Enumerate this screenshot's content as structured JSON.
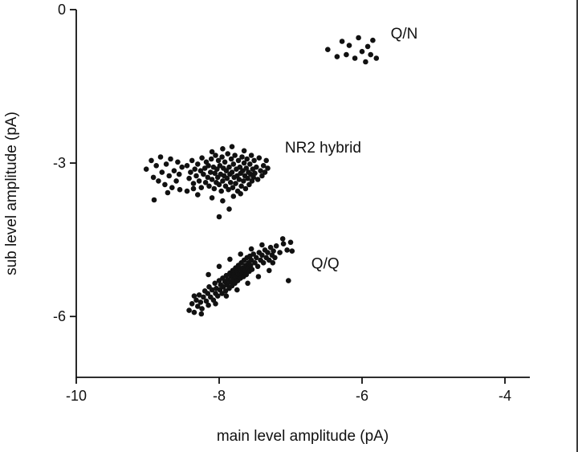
{
  "figure": {
    "background": "#ffffff",
    "point_color": "#111111",
    "axis_color": "#111111"
  },
  "chart_data": {
    "type": "scatter",
    "title": "",
    "xlabel": "main level amplitude (pA)",
    "ylabel": "sub level amplitude (pA)",
    "xlim": [
      -10,
      -3.65
    ],
    "ylim": [
      -7.2,
      0
    ],
    "xticks": [
      -10,
      -8,
      -6,
      -4
    ],
    "yticks": [
      0,
      -3,
      -6
    ],
    "grid": false,
    "legend": false,
    "annotations": [
      {
        "text": "Q/N",
        "x": -5.6,
        "y": -0.47
      },
      {
        "text": "NR2 hybrid",
        "x": -7.08,
        "y": -2.7
      },
      {
        "text": "Q/Q",
        "x": -6.71,
        "y": -4.97
      }
    ],
    "series": [
      {
        "name": "Q/N",
        "points": [
          [
            -6.48,
            -0.78
          ],
          [
            -6.35,
            -0.92
          ],
          [
            -6.28,
            -0.62
          ],
          [
            -6.22,
            -0.88
          ],
          [
            -6.18,
            -0.7
          ],
          [
            -6.1,
            -0.95
          ],
          [
            -6.05,
            -0.55
          ],
          [
            -6.0,
            -0.82
          ],
          [
            -5.95,
            -1.02
          ],
          [
            -5.92,
            -0.72
          ],
          [
            -5.88,
            -0.88
          ],
          [
            -5.85,
            -0.6
          ],
          [
            -5.8,
            -0.95
          ]
        ]
      },
      {
        "name": "NR2 hybrid",
        "points": [
          [
            -9.02,
            -3.12
          ],
          [
            -8.95,
            -2.95
          ],
          [
            -8.92,
            -3.28
          ],
          [
            -8.88,
            -3.05
          ],
          [
            -8.85,
            -3.35
          ],
          [
            -8.82,
            -2.88
          ],
          [
            -8.8,
            -3.18
          ],
          [
            -8.76,
            -3.42
          ],
          [
            -8.74,
            -3.02
          ],
          [
            -8.7,
            -3.25
          ],
          [
            -8.68,
            -2.92
          ],
          [
            -8.66,
            -3.48
          ],
          [
            -8.63,
            -3.15
          ],
          [
            -8.6,
            -3.35
          ],
          [
            -8.58,
            -2.98
          ],
          [
            -8.56,
            -3.22
          ],
          [
            -8.91,
            -3.72
          ],
          [
            -8.72,
            -3.58
          ],
          [
            -8.55,
            -3.52
          ],
          [
            -8.52,
            -3.08
          ],
          [
            -8.45,
            -3.05
          ],
          [
            -8.42,
            -3.3
          ],
          [
            -8.4,
            -3.18
          ],
          [
            -8.38,
            -2.95
          ],
          [
            -8.36,
            -3.4
          ],
          [
            -8.34,
            -3.12
          ],
          [
            -8.32,
            -3.25
          ],
          [
            -8.3,
            -3.02
          ],
          [
            -8.28,
            -3.35
          ],
          [
            -8.26,
            -3.15
          ],
          [
            -8.25,
            -3.48
          ],
          [
            -8.24,
            -2.9
          ],
          [
            -8.22,
            -3.22
          ],
          [
            -8.2,
            -3.1
          ],
          [
            -8.19,
            -3.38
          ],
          [
            -8.18,
            -2.98
          ],
          [
            -8.16,
            -3.28
          ],
          [
            -8.15,
            -3.05
          ],
          [
            -8.14,
            -3.45
          ],
          [
            -8.12,
            -3.18
          ],
          [
            -8.11,
            -2.92
          ],
          [
            -8.1,
            -3.32
          ],
          [
            -8.08,
            -3.08
          ],
          [
            -8.07,
            -3.5
          ],
          [
            -8.06,
            -3.2
          ],
          [
            -8.05,
            -2.85
          ],
          [
            -8.04,
            -3.38
          ],
          [
            -8.03,
            -3.12
          ],
          [
            -8.02,
            -3.28
          ],
          [
            -8.01,
            -2.95
          ],
          [
            -8.0,
            -3.42
          ],
          [
            -7.99,
            -3.05
          ],
          [
            -7.98,
            -3.22
          ],
          [
            -7.97,
            -3.55
          ],
          [
            -7.96,
            -2.88
          ],
          [
            -7.95,
            -3.35
          ],
          [
            -7.94,
            -3.1
          ],
          [
            -7.93,
            -3.25
          ],
          [
            -7.92,
            -2.98
          ],
          [
            -7.91,
            -3.45
          ],
          [
            -7.9,
            -3.15
          ],
          [
            -7.89,
            -3.3
          ],
          [
            -7.88,
            -2.82
          ],
          [
            -7.87,
            -3.52
          ],
          [
            -7.86,
            -3.08
          ],
          [
            -7.85,
            -3.22
          ],
          [
            -7.84,
            -3.38
          ],
          [
            -7.83,
            -2.92
          ],
          [
            -7.82,
            -3.18
          ],
          [
            -7.81,
            -3.48
          ],
          [
            -7.8,
            -3.02
          ],
          [
            -7.79,
            -3.28
          ],
          [
            -7.78,
            -2.85
          ],
          [
            -7.77,
            -3.4
          ],
          [
            -7.76,
            -3.12
          ],
          [
            -7.75,
            -3.25
          ],
          [
            -7.74,
            -3.55
          ],
          [
            -7.73,
            -2.95
          ],
          [
            -7.72,
            -3.32
          ],
          [
            -7.71,
            -3.08
          ],
          [
            -7.7,
            -3.2
          ],
          [
            -7.69,
            -3.45
          ],
          [
            -7.68,
            -2.88
          ],
          [
            -7.67,
            -3.15
          ],
          [
            -7.66,
            -3.35
          ],
          [
            -7.65,
            -3.0
          ],
          [
            -7.64,
            -3.25
          ],
          [
            -7.63,
            -3.5
          ],
          [
            -7.62,
            -3.1
          ],
          [
            -7.61,
            -2.92
          ],
          [
            -7.6,
            -3.3
          ],
          [
            -7.59,
            -3.18
          ],
          [
            -7.58,
            -3.42
          ],
          [
            -7.57,
            -3.02
          ],
          [
            -7.56,
            -3.22
          ],
          [
            -7.55,
            -2.85
          ],
          [
            -7.54,
            -3.35
          ],
          [
            -7.53,
            -3.12
          ],
          [
            -7.52,
            -3.28
          ],
          [
            -7.51,
            -2.95
          ],
          [
            -7.5,
            -3.2
          ],
          [
            -7.48,
            -3.08
          ],
          [
            -7.46,
            -3.32
          ],
          [
            -7.44,
            -2.9
          ],
          [
            -7.42,
            -3.15
          ],
          [
            -7.4,
            -3.25
          ],
          [
            -7.38,
            -3.05
          ],
          [
            -7.36,
            -3.18
          ],
          [
            -7.34,
            -2.95
          ],
          [
            -7.32,
            -3.1
          ],
          [
            -8.1,
            -2.78
          ],
          [
            -7.95,
            -2.72
          ],
          [
            -7.82,
            -2.68
          ],
          [
            -7.65,
            -2.76
          ],
          [
            -8.3,
            -3.62
          ],
          [
            -8.1,
            -3.68
          ],
          [
            -7.95,
            -3.74
          ],
          [
            -7.8,
            -3.65
          ],
          [
            -7.7,
            -3.6
          ],
          [
            -8.0,
            -4.05
          ],
          [
            -7.86,
            -3.9
          ],
          [
            -8.45,
            -3.55
          ],
          [
            -8.36,
            -3.5
          ]
        ]
      },
      {
        "name": "Q/Q",
        "points": [
          [
            -8.42,
            -5.88
          ],
          [
            -8.38,
            -5.75
          ],
          [
            -8.35,
            -5.92
          ],
          [
            -8.32,
            -5.68
          ],
          [
            -8.3,
            -5.8
          ],
          [
            -8.28,
            -5.58
          ],
          [
            -8.26,
            -5.72
          ],
          [
            -8.24,
            -5.85
          ],
          [
            -8.22,
            -5.62
          ],
          [
            -8.2,
            -5.5
          ],
          [
            -8.18,
            -5.7
          ],
          [
            -8.16,
            -5.55
          ],
          [
            -8.15,
            -5.78
          ],
          [
            -8.14,
            -5.42
          ],
          [
            -8.12,
            -5.62
          ],
          [
            -8.1,
            -5.48
          ],
          [
            -8.08,
            -5.68
          ],
          [
            -8.06,
            -5.35
          ],
          [
            -8.05,
            -5.55
          ],
          [
            -8.04,
            -5.45
          ],
          [
            -8.02,
            -5.6
          ],
          [
            -8.0,
            -5.3
          ],
          [
            -7.99,
            -5.48
          ],
          [
            -7.98,
            -5.38
          ],
          [
            -7.96,
            -5.55
          ],
          [
            -7.95,
            -5.25
          ],
          [
            -7.94,
            -5.42
          ],
          [
            -7.92,
            -5.32
          ],
          [
            -7.91,
            -5.5
          ],
          [
            -7.9,
            -5.2
          ],
          [
            -7.89,
            -5.38
          ],
          [
            -7.88,
            -5.28
          ],
          [
            -7.86,
            -5.45
          ],
          [
            -7.85,
            -5.15
          ],
          [
            -7.84,
            -5.32
          ],
          [
            -7.83,
            -5.22
          ],
          [
            -7.82,
            -5.4
          ],
          [
            -7.81,
            -5.1
          ],
          [
            -7.8,
            -5.28
          ],
          [
            -7.79,
            -5.18
          ],
          [
            -7.78,
            -5.35
          ],
          [
            -7.77,
            -5.05
          ],
          [
            -7.76,
            -5.22
          ],
          [
            -7.75,
            -5.12
          ],
          [
            -7.74,
            -5.3
          ],
          [
            -7.73,
            -5.0
          ],
          [
            -7.72,
            -5.18
          ],
          [
            -7.71,
            -5.08
          ],
          [
            -7.7,
            -5.25
          ],
          [
            -7.69,
            -4.95
          ],
          [
            -7.68,
            -5.15
          ],
          [
            -7.67,
            -5.05
          ],
          [
            -7.66,
            -5.22
          ],
          [
            -7.65,
            -4.9
          ],
          [
            -7.64,
            -5.1
          ],
          [
            -7.63,
            -5.0
          ],
          [
            -7.62,
            -5.18
          ],
          [
            -7.61,
            -4.85
          ],
          [
            -7.6,
            -5.05
          ],
          [
            -7.59,
            -4.95
          ],
          [
            -7.58,
            -5.12
          ],
          [
            -7.57,
            -4.82
          ],
          [
            -7.56,
            -5.0
          ],
          [
            -7.55,
            -4.9
          ],
          [
            -7.54,
            -5.08
          ],
          [
            -7.52,
            -4.78
          ],
          [
            -7.5,
            -4.95
          ],
          [
            -7.48,
            -4.85
          ],
          [
            -7.46,
            -5.02
          ],
          [
            -7.44,
            -4.75
          ],
          [
            -7.42,
            -4.9
          ],
          [
            -7.4,
            -4.8
          ],
          [
            -7.38,
            -4.95
          ],
          [
            -7.36,
            -4.7
          ],
          [
            -7.34,
            -4.85
          ],
          [
            -7.32,
            -4.75
          ],
          [
            -7.3,
            -4.9
          ],
          [
            -7.28,
            -4.65
          ],
          [
            -7.26,
            -4.8
          ],
          [
            -7.24,
            -4.72
          ],
          [
            -7.22,
            -4.85
          ],
          [
            -7.2,
            -4.62
          ],
          [
            -7.15,
            -4.75
          ],
          [
            -7.1,
            -4.58
          ],
          [
            -7.05,
            -4.7
          ],
          [
            -8.25,
            -5.95
          ],
          [
            -8.35,
            -5.6
          ],
          [
            -8.05,
            -5.75
          ],
          [
            -7.9,
            -5.6
          ],
          [
            -7.75,
            -5.48
          ],
          [
            -7.6,
            -5.35
          ],
          [
            -7.45,
            -5.22
          ],
          [
            -7.3,
            -5.1
          ],
          [
            -7.55,
            -4.68
          ],
          [
            -7.7,
            -4.78
          ],
          [
            -7.85,
            -4.88
          ],
          [
            -8.0,
            -5.02
          ],
          [
            -8.15,
            -5.18
          ],
          [
            -7.4,
            -4.6
          ],
          [
            -7.25,
            -4.95
          ],
          [
            -7.0,
            -4.55
          ],
          [
            -6.98,
            -4.72
          ],
          [
            -7.03,
            -5.3
          ],
          [
            -7.11,
            -4.48
          ]
        ]
      }
    ]
  }
}
